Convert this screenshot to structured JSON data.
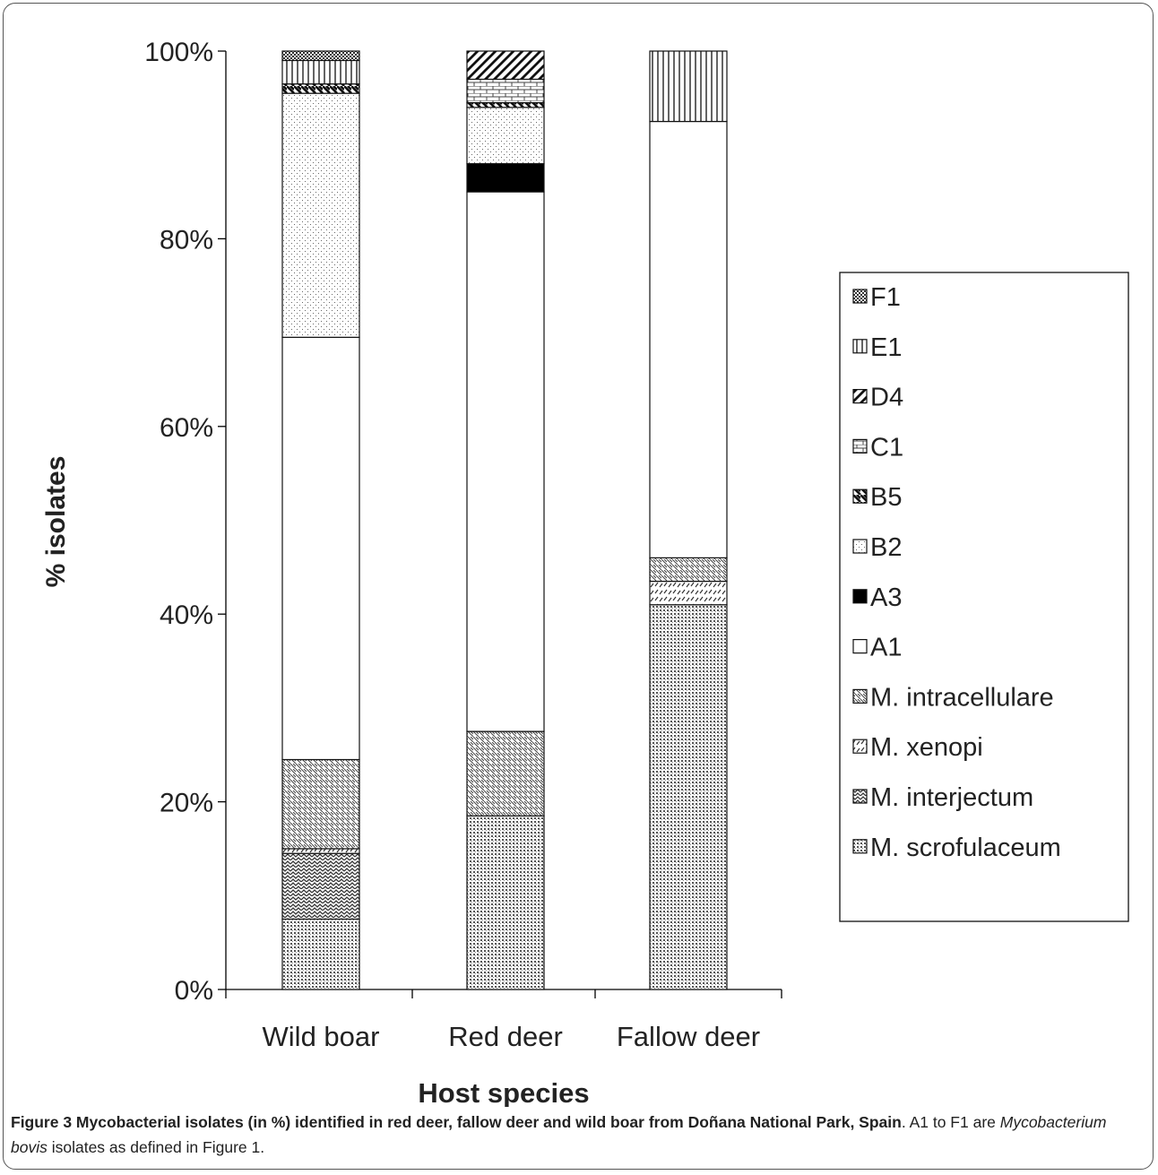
{
  "chart_data": {
    "type": "bar",
    "stacked": true,
    "normalized": true,
    "categories": [
      "Wild boar",
      "Red deer",
      "Fallow deer"
    ],
    "ylabel": "% isolates",
    "xlabel": "Host species",
    "ylim": [
      0,
      100
    ],
    "yticks": [
      "0%",
      "20%",
      "40%",
      "60%",
      "80%",
      "100%"
    ],
    "legend_position": "right",
    "series": [
      {
        "name": "M. scrofulaceum",
        "pattern": "dots-dense",
        "values": [
          7.5,
          18.5,
          41
        ]
      },
      {
        "name": "M. interjectum",
        "pattern": "zigzag",
        "values": [
          7,
          0,
          0
        ]
      },
      {
        "name": "M. xenopi",
        "pattern": "dashes",
        "values": [
          0.5,
          0,
          2.5
        ]
      },
      {
        "name": "M. intracellulare",
        "pattern": "diag-thin",
        "values": [
          9.5,
          9,
          2.5
        ]
      },
      {
        "name": "A1",
        "pattern": "white",
        "values": [
          45,
          57.5,
          46.5
        ]
      },
      {
        "name": "A3",
        "pattern": "black",
        "values": [
          0,
          3,
          0
        ]
      },
      {
        "name": "B2",
        "pattern": "dots-sparse",
        "values": [
          26,
          6,
          0
        ]
      },
      {
        "name": "B5",
        "pattern": "diag-back",
        "values": [
          1,
          0.5,
          0
        ]
      },
      {
        "name": "C1",
        "pattern": "brick",
        "values": [
          0,
          2.5,
          0
        ]
      },
      {
        "name": "D4",
        "pattern": "diag-wide",
        "values": [
          0,
          3,
          0
        ]
      },
      {
        "name": "E1",
        "pattern": "vertical",
        "values": [
          2.5,
          0,
          7.5
        ]
      },
      {
        "name": "F1",
        "pattern": "checker",
        "values": [
          1,
          0,
          0
        ]
      }
    ]
  },
  "caption": {
    "label": "Figure 3 Mycobacterial isolates (in %) identified in red deer, fallow deer and wild boar from Doñana National Park, Spain",
    "text1": ". A1 to F1 are ",
    "species": "Mycobacterium bovis",
    "text2": " isolates as defined in Figure 1."
  }
}
